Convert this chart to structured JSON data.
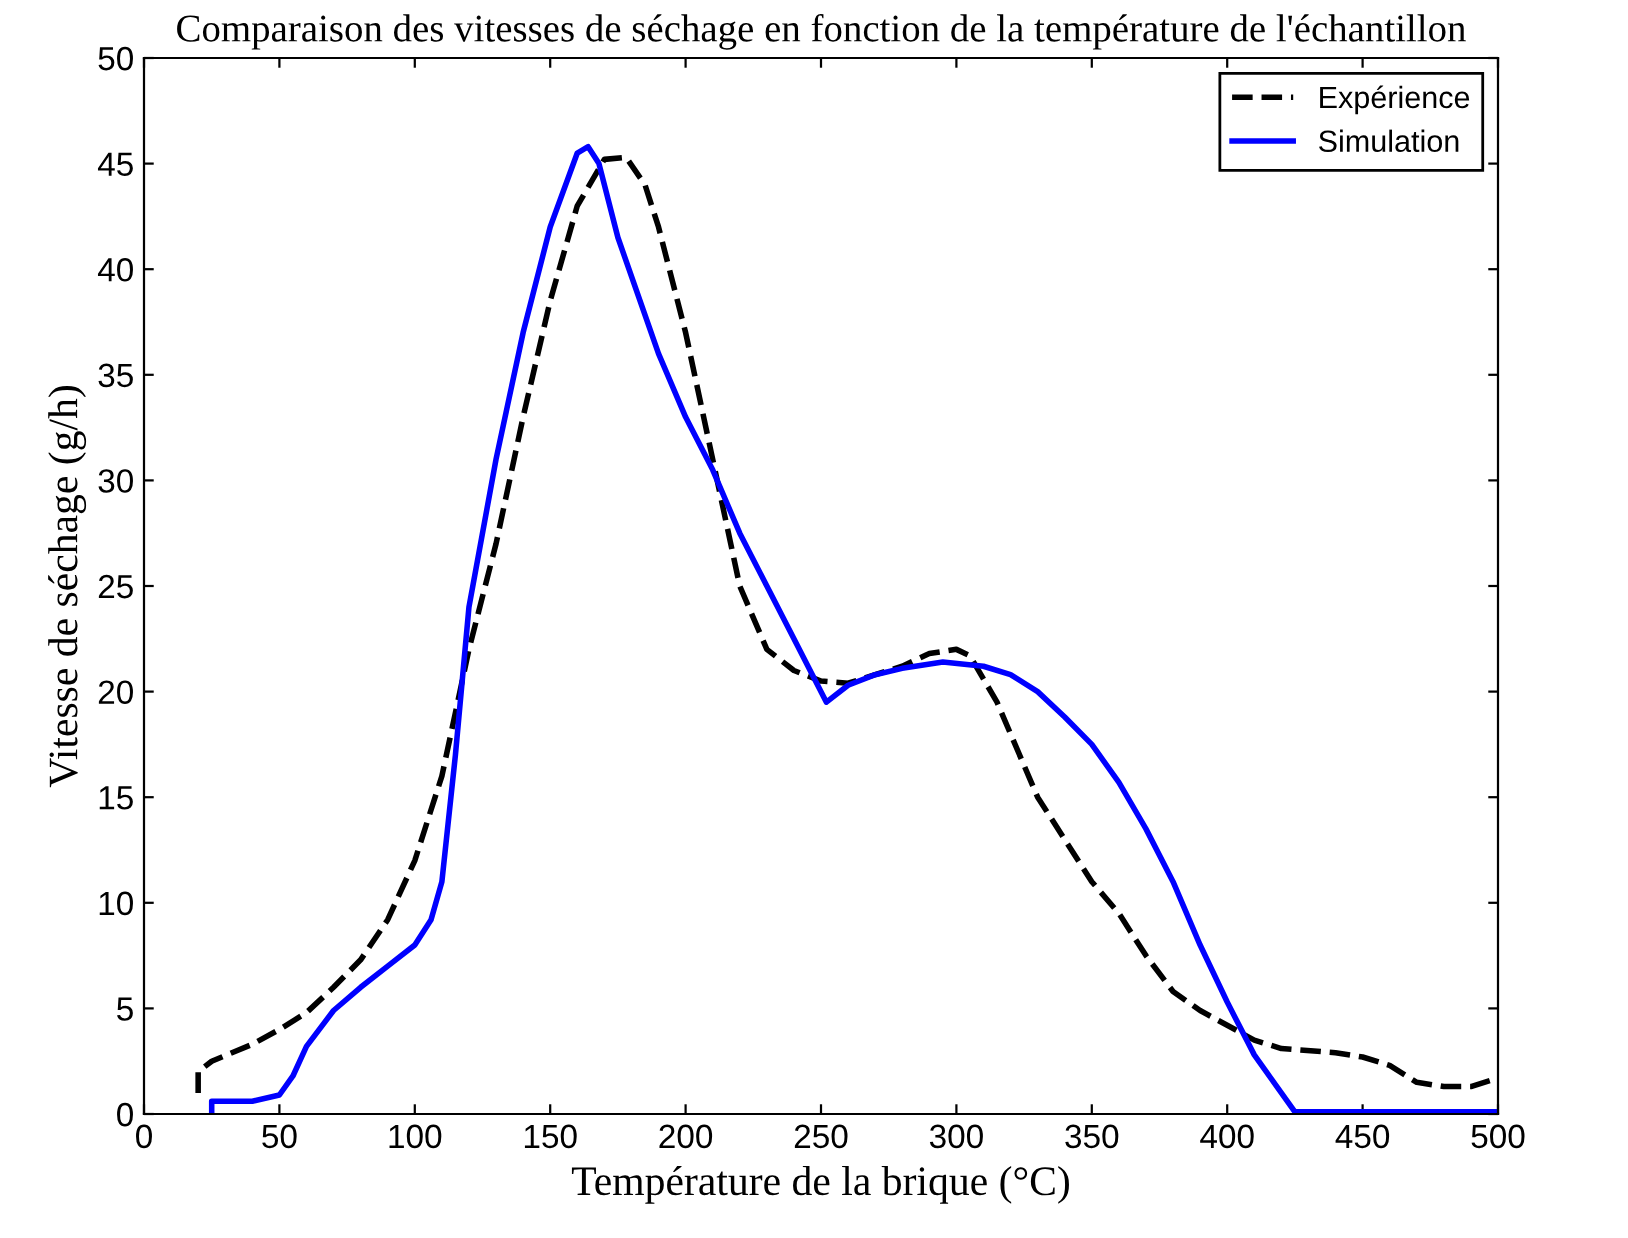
{
  "chart_data": {
    "type": "line",
    "title": "Comparaison des vitesses de séchage en fonction de la température de l'échantillon",
    "xlabel": "Température de la brique (°C)",
    "ylabel": "Vitesse de séchage (g/h)",
    "xlim": [
      0,
      500
    ],
    "ylim": [
      0,
      50
    ],
    "xticks": [
      0,
      50,
      100,
      150,
      200,
      250,
      300,
      350,
      400,
      450,
      500
    ],
    "yticks": [
      0,
      5,
      10,
      15,
      20,
      25,
      30,
      35,
      40,
      45,
      50
    ],
    "grid": false,
    "legend": "top right",
    "series": [
      {
        "name": "Expérience",
        "color": "#000000",
        "line_style": "dashed",
        "x": [
          20,
          20,
          25,
          40,
          50,
          60,
          70,
          80,
          90,
          100,
          110,
          120,
          130,
          140,
          150,
          160,
          170,
          178,
          185,
          190,
          200,
          210,
          220,
          230,
          240,
          250,
          260,
          270,
          280,
          290,
          300,
          305,
          315,
          330,
          340,
          350,
          360,
          370,
          380,
          390,
          400,
          410,
          420,
          440,
          450,
          460,
          470,
          480,
          490,
          500
        ],
        "values": [
          1,
          2,
          2.5,
          3.3,
          4,
          4.8,
          6,
          7.3,
          9.2,
          12,
          16,
          22,
          27,
          33,
          38.5,
          43,
          45.2,
          45.3,
          44,
          42,
          37,
          31,
          25,
          22,
          21,
          20.5,
          20.4,
          20.8,
          21.2,
          21.8,
          22,
          21.7,
          19.5,
          15,
          13,
          11,
          9.5,
          7.5,
          5.8,
          4.9,
          4.2,
          3.5,
          3.1,
          2.9,
          2.7,
          2.3,
          1.5,
          1.3,
          1.3,
          1.7
        ]
      },
      {
        "name": "Simulation",
        "color": "#0000ff",
        "line_style": "solid",
        "x": [
          25,
          25,
          40,
          50,
          55,
          60,
          70,
          80,
          90,
          100,
          106,
          110,
          115,
          120,
          130,
          140,
          150,
          160,
          164,
          168,
          175,
          190,
          200,
          210,
          220,
          230,
          240,
          252,
          260,
          270,
          280,
          295,
          310,
          320,
          330,
          340,
          350,
          360,
          370,
          380,
          390,
          400,
          410,
          425,
          450,
          500
        ],
        "values": [
          0,
          0.6,
          0.6,
          0.9,
          1.8,
          3.2,
          4.9,
          6,
          7,
          8,
          9.2,
          11,
          17,
          24,
          31,
          37,
          42,
          45.5,
          45.8,
          45,
          41.5,
          36,
          33,
          30.5,
          27.5,
          25,
          22.5,
          19.5,
          20.3,
          20.8,
          21.1,
          21.4,
          21.2,
          20.8,
          20,
          18.8,
          17.5,
          15.7,
          13.5,
          11,
          8,
          5.3,
          2.8,
          0.1,
          0.1,
          0.1
        ]
      }
    ]
  }
}
